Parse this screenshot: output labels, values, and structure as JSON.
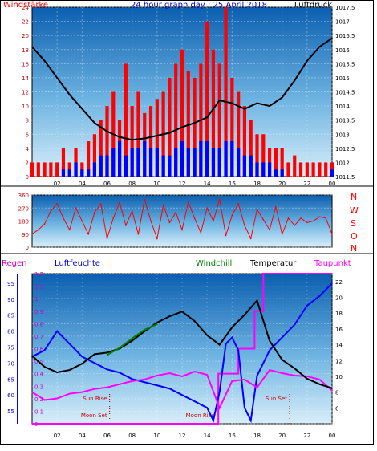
{
  "header": {
    "left_label": "Windstärke",
    "title": "24 hour graph day : 25 April 2018",
    "right_label": "Luftdruck"
  },
  "mid_labels": {
    "compass": [
      "N",
      "W",
      "S",
      "O",
      "N"
    ]
  },
  "bottom_header": {
    "regen": "Regen",
    "luftfeuchte": "Luftfeuchte",
    "windchill": "Windchill",
    "temperatur": "Temperatur",
    "taupunkt": "Taupunkt"
  },
  "colors": {
    "wind": "#ff0000",
    "gust_blue": "#0000ff",
    "pressure": "#000000",
    "humidity": "#0000ff",
    "windchill": "#008000",
    "temperature": "#000000",
    "dewpoint": "#ff00ff",
    "rain_axis": "#0000ff",
    "sky_top": "#0b5fb0",
    "sky_bottom": "#d6ecf8"
  },
  "chart_data": [
    {
      "type": "bar",
      "title": "24 hour graph day : 25 April 2018",
      "x_ticks": [
        "02",
        "04",
        "06",
        "08",
        "10",
        "12",
        "14",
        "16",
        "18",
        "20",
        "22",
        "00"
      ],
      "y_left_label": "Windstärke",
      "y_left_ticks": [
        "0",
        "2",
        "4",
        "6",
        "8",
        "10",
        "12",
        "14",
        "16",
        "18",
        "20",
        "22",
        "24"
      ],
      "ylim_left": [
        0,
        24
      ],
      "y_right_label": "Luftdruck",
      "y_right_ticks": [
        "1011.5",
        "1012",
        "1012.5",
        "1013",
        "1013.5",
        "1014",
        "1014.5",
        "1015",
        "1015.5",
        "1016",
        "1016.5",
        "1017",
        "1017.5"
      ],
      "ylim_right": [
        1011.5,
        1017.5
      ],
      "series": [
        {
          "name": "Windstärke",
          "type": "bar",
          "x": [
            0,
            0.5,
            1,
            1.5,
            2,
            2.5,
            3,
            3.5,
            4,
            4.5,
            5,
            5.5,
            6,
            6.5,
            7,
            7.5,
            8,
            8.5,
            9,
            9.5,
            10,
            10.5,
            11,
            11.5,
            12,
            12.5,
            13,
            13.5,
            14,
            14.5,
            15,
            15.5,
            16,
            16.5,
            17,
            17.5,
            18,
            18.5,
            19,
            19.5,
            20,
            20.5,
            21,
            21.5,
            22,
            22.5,
            23,
            23.5,
            24
          ],
          "values": [
            2,
            2,
            2,
            2,
            2,
            4,
            2,
            4,
            2,
            5,
            6,
            8,
            10,
            12,
            8,
            16,
            10,
            12,
            9,
            10,
            11,
            12,
            14,
            16,
            18,
            15,
            14,
            16,
            22,
            18,
            16,
            24,
            14,
            12,
            10,
            8,
            6,
            6,
            4,
            4,
            4,
            2,
            3,
            2,
            2,
            2,
            2,
            2,
            2
          ]
        },
        {
          "name": "Wind (blue)",
          "type": "bar",
          "x": [
            0,
            0.5,
            1,
            1.5,
            2,
            2.5,
            3,
            3.5,
            4,
            4.5,
            5,
            5.5,
            6,
            6.5,
            7,
            7.5,
            8,
            8.5,
            9,
            9.5,
            10,
            10.5,
            11,
            11.5,
            12,
            12.5,
            13,
            13.5,
            14,
            14.5,
            15,
            15.5,
            16,
            16.5,
            17,
            17.5,
            18,
            18.5,
            19,
            19.5,
            20,
            20.5,
            21,
            21.5,
            22,
            22.5,
            23,
            23.5,
            24
          ],
          "values": [
            0,
            0,
            0,
            0,
            0,
            1,
            1,
            2,
            1,
            1,
            2,
            3,
            3,
            4,
            5,
            3,
            4,
            4,
            5,
            4,
            4,
            3,
            3,
            4,
            5,
            4,
            4,
            5,
            5,
            4,
            4,
            5,
            5,
            4,
            3,
            3,
            2,
            2,
            2,
            1,
            1,
            0,
            0,
            0,
            0,
            0,
            0,
            0,
            1
          ]
        },
        {
          "name": "Luftdruck",
          "type": "line",
          "x": [
            0,
            1,
            2,
            3,
            4,
            5,
            6,
            7,
            8,
            9,
            10,
            11,
            12,
            13,
            14,
            15,
            16,
            17,
            18,
            19,
            20,
            21,
            22,
            23,
            24
          ],
          "values": [
            1016.1,
            1015.6,
            1015.0,
            1014.4,
            1013.9,
            1013.4,
            1013.1,
            1012.9,
            1012.8,
            1012.85,
            1012.95,
            1013.05,
            1013.25,
            1013.4,
            1013.6,
            1014.2,
            1014.1,
            1013.9,
            1014.1,
            1014.0,
            1014.3,
            1014.9,
            1015.6,
            1016.1,
            1016.4
          ]
        }
      ]
    },
    {
      "type": "line",
      "ylabel": "",
      "y_ticks": [
        "0",
        "90",
        "180",
        "270",
        "360"
      ],
      "ylim": [
        0,
        360
      ],
      "series": [
        {
          "name": "Windrichtung",
          "x": [
            0,
            0.5,
            1,
            1.5,
            2,
            2.5,
            3,
            3.5,
            4,
            4.5,
            5,
            5.5,
            6,
            6.5,
            7,
            7.5,
            8,
            8.5,
            9,
            9.5,
            10,
            10.5,
            11,
            11.5,
            12,
            12.5,
            13,
            13.5,
            14,
            14.5,
            15,
            15.5,
            16,
            16.5,
            17,
            17.5,
            18,
            18.5,
            19,
            19.5,
            20,
            20.5,
            21,
            21.5,
            22,
            22.5,
            23,
            23.5,
            24
          ],
          "values": [
            90,
            120,
            160,
            250,
            300,
            200,
            120,
            270,
            180,
            90,
            240,
            300,
            60,
            200,
            310,
            150,
            250,
            90,
            330,
            180,
            60,
            290,
            170,
            240,
            120,
            310,
            200,
            100,
            270,
            180,
            330,
            80,
            220,
            300,
            150,
            60,
            260,
            190,
            120,
            280,
            90,
            200,
            150,
            200,
            170,
            180,
            210,
            200,
            90
          ]
        }
      ]
    },
    {
      "type": "line",
      "x_ticks": [
        "02",
        "04",
        "06",
        "08",
        "10",
        "12",
        "14",
        "16",
        "18",
        "20",
        "22",
        "00"
      ],
      "y_regen_label": "Regen",
      "y_regen_ticks": [
        "0",
        "0.1",
        "0.2",
        "0.3",
        "0.4",
        "0.5",
        "0.6",
        "0.7",
        "0.8",
        "0.9",
        "1",
        "1.1",
        "1.2"
      ],
      "ylim_regen": [
        0,
        1.2
      ],
      "y_humidity_label": "Luftfeuchte",
      "y_humidity_ticks": [
        "55",
        "60",
        "65",
        "70",
        "75",
        "80",
        "85",
        "90",
        "95"
      ],
      "ylim_humidity": [
        51,
        98
      ],
      "y_temp_label": "Temperatur",
      "y_temp_ticks": [
        "6",
        "8",
        "10",
        "12",
        "14",
        "16",
        "18",
        "20",
        "22"
      ],
      "ylim_temp": [
        4,
        23
      ],
      "annotations": [
        {
          "text": "Moon Set",
          "x": 6.2
        },
        {
          "text": "Sun Rise",
          "x": 6.2
        },
        {
          "text": "Moon Rise",
          "x": 14.8
        },
        {
          "text": "Sun Set",
          "x": 20.6
        }
      ],
      "series": [
        {
          "name": "Luftfeuchte",
          "x": [
            0,
            1,
            2,
            3,
            4,
            5,
            6,
            7,
            8,
            9,
            10,
            11,
            12,
            13,
            14,
            14.5,
            15,
            15.5,
            16,
            16.5,
            17,
            17.5,
            18,
            19,
            20,
            21,
            22,
            23,
            24
          ],
          "values": [
            72,
            74,
            80,
            76,
            72,
            70,
            68,
            67,
            65,
            64,
            63,
            62,
            60,
            58,
            56,
            52,
            61,
            76,
            78,
            74,
            56,
            52,
            66,
            74,
            78,
            82,
            88,
            91,
            95
          ]
        },
        {
          "name": "Windchill",
          "x": [
            6,
            7,
            8,
            9,
            10
          ],
          "values": [
            12.7,
            13.6,
            14.8,
            15.9,
            16.6
          ]
        },
        {
          "name": "Temperatur",
          "x": [
            0,
            1,
            2,
            3,
            4,
            5,
            6,
            7,
            8,
            9,
            10,
            11,
            12,
            13,
            14,
            15,
            16,
            17,
            18,
            19,
            20,
            21,
            22,
            23,
            24
          ],
          "values": [
            12.6,
            11.2,
            10.5,
            10.8,
            11.6,
            12.8,
            13.0,
            13.5,
            14.5,
            15.7,
            16.8,
            17.6,
            18.2,
            17.0,
            15.2,
            14.0,
            16.2,
            17.8,
            19.6,
            14.5,
            12.1,
            11.0,
            9.7,
            9.0,
            8.5
          ]
        },
        {
          "name": "Taupunkt",
          "x": [
            0,
            1,
            2,
            3,
            4,
            5,
            6,
            7,
            8,
            9,
            10,
            11,
            12,
            13,
            14,
            15,
            16,
            17,
            18,
            19,
            20,
            21,
            22,
            23,
            24
          ],
          "values": [
            8.0,
            7.0,
            7.2,
            7.8,
            8.0,
            8.4,
            8.6,
            9.0,
            9.4,
            9.6,
            10.1,
            10.4,
            10.0,
            10.6,
            10.2,
            6.0,
            9.4,
            9.6,
            8.6,
            10.8,
            10.4,
            10.1,
            10.0,
            9.6,
            8.2
          ]
        },
        {
          "name": "Regen",
          "x": [
            0,
            14.9,
            14.9,
            16.5,
            16.5,
            17.8,
            17.8,
            18.5,
            18.5,
            24
          ],
          "values": [
            0,
            0,
            0.4,
            0.4,
            0.6,
            0.6,
            0.9,
            0.9,
            1.2,
            1.2
          ]
        }
      ]
    }
  ]
}
